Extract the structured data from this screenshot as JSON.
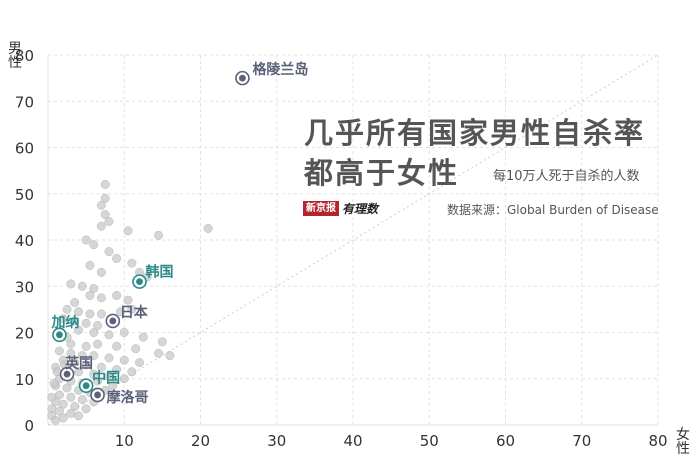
{
  "title": [
    "几乎所有国家男性自杀率",
    "都高于女性"
  ],
  "subtitle": "每10万人死于自杀的人数",
  "source": "数据来源：Global Burden of Disease",
  "logo": {
    "red_text": "新京报",
    "black_text": "有理数"
  },
  "colors": {
    "highlight_dark": "#5a6178",
    "highlight_teal": "#2a8a88",
    "background_points": "#c8c8c8",
    "grid": "#e2e2e2",
    "diagonal": "#cccccc"
  },
  "chart_data": {
    "type": "scatter",
    "xlabel": "女性",
    "ylabel": "男性",
    "xlim": [
      0,
      80
    ],
    "ylim": [
      0,
      80
    ],
    "x_ticks": [
      10,
      20,
      30,
      40,
      50,
      60,
      70,
      80
    ],
    "y_ticks": [
      0,
      10,
      20,
      30,
      40,
      50,
      60,
      70,
      80
    ],
    "grid": true,
    "reference_line": "y = x",
    "highlighted": [
      {
        "name": "格陵兰岛",
        "x": 25.5,
        "y": 75,
        "color": "dark"
      },
      {
        "name": "韩国",
        "x": 12,
        "y": 31,
        "color": "teal"
      },
      {
        "name": "日本",
        "x": 8.5,
        "y": 22.5,
        "color": "dark"
      },
      {
        "name": "加纳",
        "x": 1.5,
        "y": 19.5,
        "color": "teal"
      },
      {
        "name": "英国",
        "x": 2.5,
        "y": 11,
        "color": "dark"
      },
      {
        "name": "中国",
        "x": 5,
        "y": 8.5,
        "color": "teal"
      },
      {
        "name": "摩洛哥",
        "x": 6.5,
        "y": 6.5,
        "color": "dark"
      }
    ],
    "background_points": [
      [
        7.5,
        52
      ],
      [
        7.5,
        49
      ],
      [
        7,
        47.5
      ],
      [
        7.5,
        45.5
      ],
      [
        8,
        44
      ],
      [
        7,
        43
      ],
      [
        10.5,
        42
      ],
      [
        14.5,
        41
      ],
      [
        21,
        42.5
      ],
      [
        5,
        40
      ],
      [
        6,
        39
      ],
      [
        8,
        37.5
      ],
      [
        9,
        36
      ],
      [
        11,
        35
      ],
      [
        5.5,
        34.5
      ],
      [
        7,
        33
      ],
      [
        12,
        33
      ],
      [
        13,
        32
      ],
      [
        3,
        30.5
      ],
      [
        4.5,
        30
      ],
      [
        6,
        29.5
      ],
      [
        5.5,
        28
      ],
      [
        7,
        27.5
      ],
      [
        9,
        28
      ],
      [
        10.5,
        27
      ],
      [
        3.5,
        26.5
      ],
      [
        2.5,
        25
      ],
      [
        4,
        24.5
      ],
      [
        5.5,
        24
      ],
      [
        7,
        24
      ],
      [
        9.5,
        24.5
      ],
      [
        11,
        25
      ],
      [
        2,
        23
      ],
      [
        3.5,
        22.5
      ],
      [
        5,
        22
      ],
      [
        6.5,
        21.5
      ],
      [
        4,
        20.5
      ],
      [
        6,
        20
      ],
      [
        8,
        19.5
      ],
      [
        10,
        20
      ],
      [
        12.5,
        19
      ],
      [
        15,
        18
      ],
      [
        2.5,
        19
      ],
      [
        3,
        17.5
      ],
      [
        5,
        17
      ],
      [
        6.5,
        17.5
      ],
      [
        9,
        17
      ],
      [
        11.5,
        16.5
      ],
      [
        14.5,
        15.5
      ],
      [
        16,
        15
      ],
      [
        1.5,
        16
      ],
      [
        3,
        15.5
      ],
      [
        4.5,
        15
      ],
      [
        6,
        15
      ],
      [
        8,
        14.5
      ],
      [
        10,
        14
      ],
      [
        12,
        13.5
      ],
      [
        2,
        14
      ],
      [
        3.5,
        13.5
      ],
      [
        5,
        13
      ],
      [
        7,
        12.5
      ],
      [
        9,
        12
      ],
      [
        11,
        11.5
      ],
      [
        1,
        12.5
      ],
      [
        2.5,
        12
      ],
      [
        4,
        11.5
      ],
      [
        6,
        11
      ],
      [
        8,
        10.5
      ],
      [
        10,
        10
      ],
      [
        1.5,
        10
      ],
      [
        3,
        9.5
      ],
      [
        4.5,
        9
      ],
      [
        6.5,
        9.5
      ],
      [
        8.5,
        8.5
      ],
      [
        1,
        8.5
      ],
      [
        2.5,
        8
      ],
      [
        4,
        7.5
      ],
      [
        5.5,
        7
      ],
      [
        7.5,
        7.5
      ],
      [
        1.5,
        6.5
      ],
      [
        3,
        6
      ],
      [
        4.5,
        5.5
      ],
      [
        6,
        5
      ],
      [
        1,
        5
      ],
      [
        2,
        4.5
      ],
      [
        3.5,
        4
      ],
      [
        5,
        3.5
      ],
      [
        0.5,
        3.5
      ],
      [
        1.5,
        3
      ],
      [
        3,
        2.5
      ],
      [
        0.5,
        2
      ],
      [
        2,
        1.5
      ],
      [
        4,
        2
      ],
      [
        1,
        1
      ],
      [
        0.5,
        6
      ],
      [
        0.8,
        9
      ],
      [
        1.2,
        11.5
      ],
      [
        2.2,
        13
      ]
    ]
  }
}
